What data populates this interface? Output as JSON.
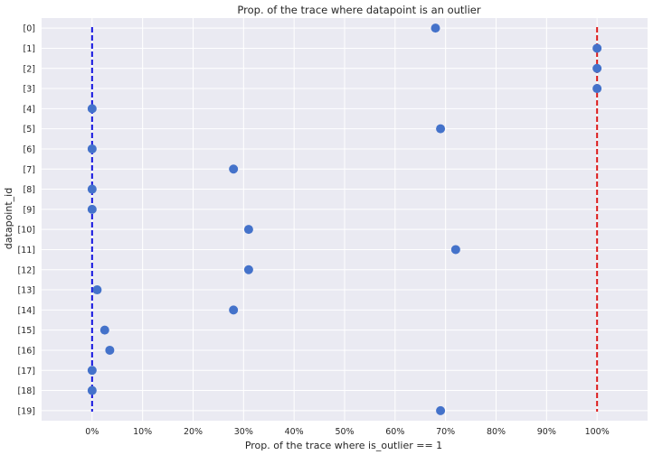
{
  "chart_data": {
    "type": "scatter",
    "title": "Prop. of the trace where datapoint is an outlier",
    "xlabel": "Prop. of the trace where is_outlier == 1",
    "ylabel": "datapoint_id",
    "xlim": [
      -0.1,
      1.1
    ],
    "x_ticks": [
      0,
      0.1,
      0.2,
      0.3,
      0.4,
      0.5,
      0.6,
      0.7,
      0.8,
      0.9,
      1.0
    ],
    "x_tick_labels": [
      "0%",
      "10%",
      "20%",
      "30%",
      "40%",
      "50%",
      "60%",
      "70%",
      "80%",
      "90%",
      "100%"
    ],
    "categories": [
      "[0]",
      "[1]",
      "[2]",
      "[3]",
      "[4]",
      "[5]",
      "[6]",
      "[7]",
      "[8]",
      "[9]",
      "[10]",
      "[11]",
      "[12]",
      "[13]",
      "[14]",
      "[15]",
      "[16]",
      "[17]",
      "[18]",
      "[19]"
    ],
    "values": [
      0.68,
      1.0,
      1.0,
      1.0,
      0.0,
      0.69,
      0.0,
      0.28,
      0.0,
      0.0,
      0.31,
      0.72,
      0.31,
      0.01,
      0.28,
      0.025,
      0.035,
      0.0,
      0.0,
      0.69
    ],
    "reference_lines": [
      {
        "x": 0.0,
        "color": "#1515e0",
        "style": "dashed"
      },
      {
        "x": 1.0,
        "color": "#dd1c1c",
        "style": "dashed"
      }
    ],
    "grid": true,
    "point_color": "#4472ca",
    "background_color": "#eaeaf2"
  }
}
